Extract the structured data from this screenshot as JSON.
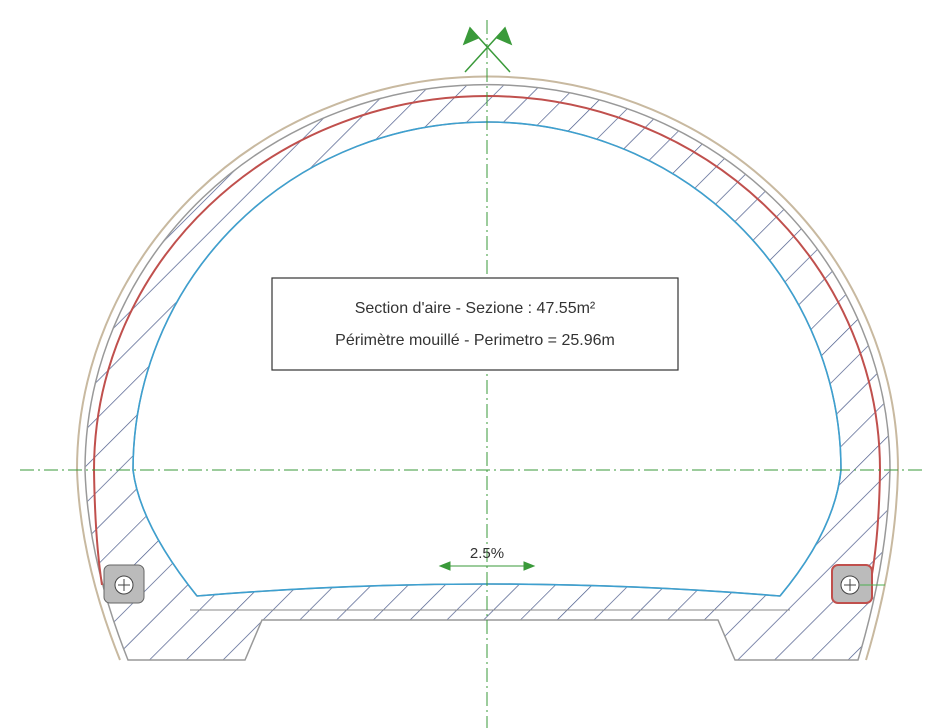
{
  "box": {
    "line1": "Section d'aire - Sezione : 47.55m²",
    "line2": "Périmètre mouillé - Perimetro = 25.96m"
  },
  "slope": "2.5%"
}
